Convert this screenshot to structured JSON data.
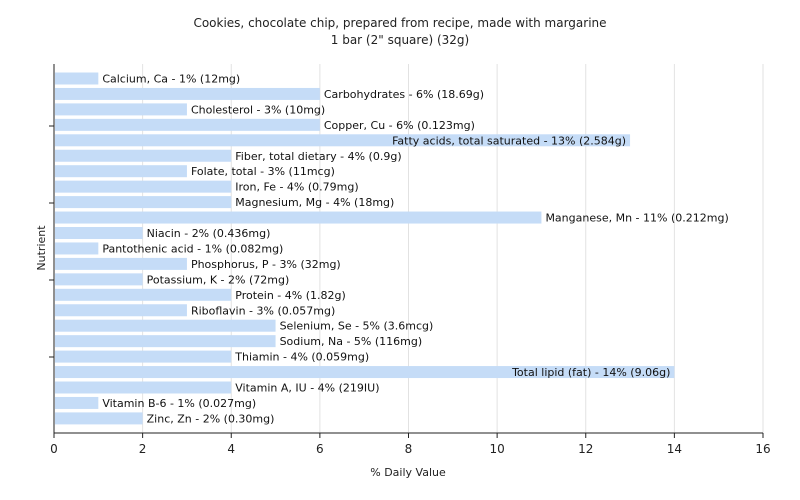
{
  "chart_data": {
    "type": "bar",
    "orientation": "horizontal",
    "title": "Cookies, chocolate chip, prepared from recipe, made with margarine",
    "subtitle": "1 bar (2\" square) (32g)",
    "xlabel": "% Daily Value",
    "ylabel": "Nutrient",
    "xlim": [
      0,
      16
    ],
    "xticks": [
      "0",
      "2",
      "4",
      "6",
      "8",
      "10",
      "12",
      "14",
      "16"
    ],
    "grid": "vertical",
    "bar_color": "#c5dcf7",
    "categories": [
      "Calcium, Ca",
      "Carbohydrates",
      "Cholesterol",
      "Copper, Cu",
      "Fatty acids, total saturated",
      "Fiber, total dietary",
      "Folate, total",
      "Iron, Fe",
      "Magnesium, Mg",
      "Manganese, Mn",
      "Niacin",
      "Pantothenic acid",
      "Phosphorus, P",
      "Potassium, K",
      "Protein",
      "Riboflavin",
      "Selenium, Se",
      "Sodium, Na",
      "Thiamin",
      "Total lipid (fat)",
      "Vitamin A, IU",
      "Vitamin B-6",
      "Zinc, Zn"
    ],
    "values": [
      1,
      6,
      3,
      6,
      13,
      4,
      3,
      4,
      4,
      11,
      2,
      1,
      3,
      2,
      4,
      3,
      5,
      5,
      4,
      14,
      4,
      1,
      2
    ],
    "labels": [
      "Calcium, Ca - 1% (12mg)",
      "Carbohydrates - 6% (18.69g)",
      "Cholesterol - 3% (10mg)",
      "Copper, Cu - 6% (0.123mg)",
      "Fatty acids, total saturated - 13% (2.584g)",
      "Fiber, total dietary - 4% (0.9g)",
      "Folate, total - 3% (11mcg)",
      "Iron, Fe - 4% (0.79mg)",
      "Magnesium, Mg - 4% (18mg)",
      "Manganese, Mn - 11% (0.212mg)",
      "Niacin - 2% (0.436mg)",
      "Pantothenic acid - 1% (0.082mg)",
      "Phosphorus, P - 3% (32mg)",
      "Potassium, K - 2% (72mg)",
      "Protein - 4% (1.82g)",
      "Riboflavin - 3% (0.057mg)",
      "Selenium, Se - 5% (3.6mcg)",
      "Sodium, Na - 5% (116mg)",
      "Thiamin - 4% (0.059mg)",
      "Total lipid (fat) - 14% (9.06g)",
      "Vitamin A, IU - 4% (219IU)",
      "Vitamin B-6 - 1% (0.027mg)",
      "Zinc, Zn - 2% (0.30mg)"
    ]
  }
}
